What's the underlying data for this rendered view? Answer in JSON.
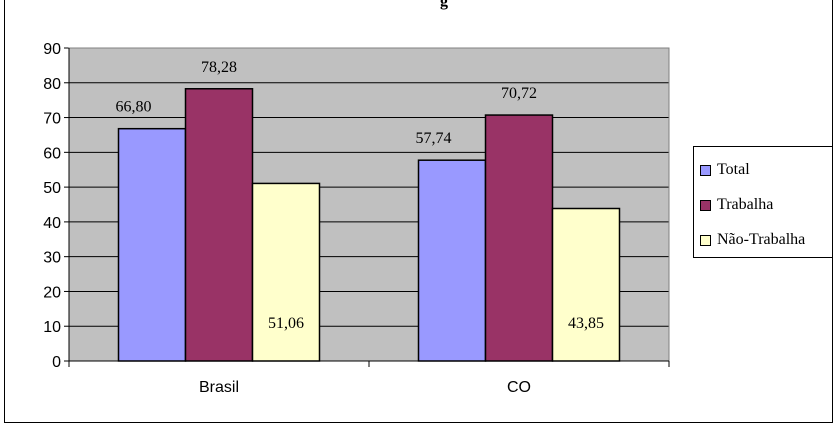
{
  "chart_data": {
    "type": "bar",
    "title_fragment": "g",
    "categories": [
      "Brasil",
      "CO"
    ],
    "series": [
      {
        "name": "Total",
        "color": "#9999ff",
        "values": [
          66.8,
          57.74
        ],
        "labels": [
          "66,80",
          "57,74"
        ]
      },
      {
        "name": "Trabalha",
        "color": "#993366",
        "values": [
          78.28,
          70.72
        ],
        "labels": [
          "78,28",
          "70,72"
        ]
      },
      {
        "name": "Não-Trabalha",
        "color": "#ffffcc",
        "values": [
          51.06,
          43.85
        ],
        "labels": [
          "51,06",
          "43,85"
        ]
      }
    ],
    "ylim": [
      0,
      90
    ],
    "yticks": [
      "0",
      "10",
      "20",
      "30",
      "40",
      "50",
      "60",
      "70",
      "80",
      "90"
    ],
    "grid": true,
    "plot_background": "#c0c0c0",
    "legend_position": "right"
  }
}
